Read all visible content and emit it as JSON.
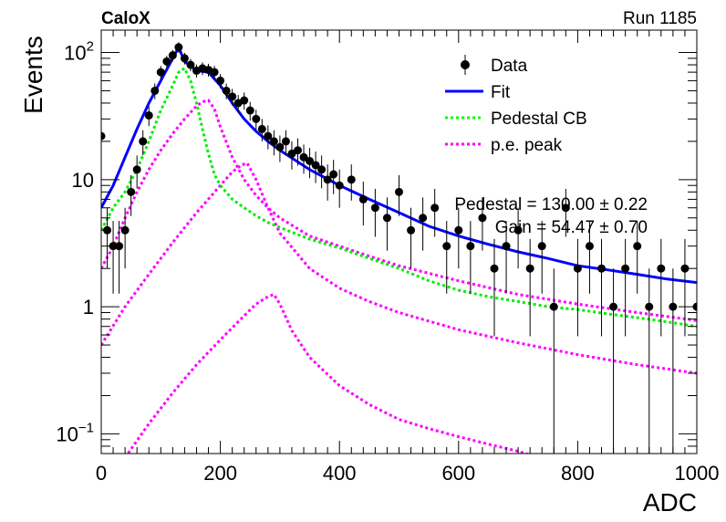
{
  "header": {
    "experiment": "CaloX",
    "run": "Run 1185"
  },
  "chart_data": {
    "type": "scatter",
    "title": "",
    "xlabel": "ADC",
    "ylabel": "Events",
    "xlim": [
      0,
      1000
    ],
    "ylim": [
      0.07,
      150
    ],
    "y_scale": "log",
    "grid": false,
    "legend_position": "top-right",
    "x_ticks": [
      "0",
      "200",
      "400",
      "600",
      "800",
      "1000"
    ],
    "y_ticks": [
      "10^-1",
      "1",
      "10",
      "10^2"
    ],
    "legend": [
      {
        "label": "Data",
        "style": "marker-errorbar",
        "color": "#000000"
      },
      {
        "label": "Fit",
        "style": "solid",
        "color": "#0000ff"
      },
      {
        "label": "Pedestal CB",
        "style": "dotted",
        "color": "#00ff00"
      },
      {
        "label": "p.e. peak",
        "style": "dotted",
        "color": "#ff00ff"
      }
    ],
    "fit_text": [
      "Pedestal = 130.00 ± 0.22",
      "Gain = 54.47 ± 0.70"
    ],
    "series": [
      {
        "name": "Data",
        "kind": "points",
        "x": [
          0,
          10,
          20,
          30,
          40,
          50,
          60,
          70,
          80,
          90,
          100,
          110,
          120,
          130,
          140,
          150,
          160,
          170,
          180,
          190,
          200,
          210,
          220,
          230,
          240,
          250,
          260,
          270,
          280,
          290,
          300,
          310,
          320,
          330,
          340,
          350,
          360,
          370,
          380,
          390,
          400,
          420,
          440,
          460,
          480,
          500,
          520,
          540,
          560,
          580,
          600,
          620,
          640,
          660,
          680,
          700,
          720,
          740,
          760,
          780,
          800,
          820,
          840,
          860,
          880,
          900,
          920,
          940,
          960,
          980,
          1000
        ],
        "y": [
          22,
          4,
          3,
          3,
          4,
          8,
          12,
          20,
          32,
          50,
          70,
          85,
          95,
          110,
          90,
          80,
          72,
          75,
          73,
          70,
          60,
          50,
          45,
          40,
          42,
          35,
          30,
          25,
          22,
          20,
          18,
          20,
          16,
          17,
          15,
          14,
          13,
          12,
          10,
          11,
          9,
          10,
          7,
          6,
          5,
          8,
          4,
          5,
          6,
          3,
          4,
          3,
          5,
          2,
          3,
          4,
          2,
          3,
          1,
          6,
          2,
          3,
          2,
          1,
          2,
          3,
          1,
          2,
          1,
          2,
          1
        ]
      },
      {
        "name": "Fit",
        "kind": "line",
        "x": [
          0,
          20,
          40,
          60,
          80,
          100,
          120,
          130,
          140,
          160,
          180,
          200,
          220,
          240,
          260,
          280,
          300,
          350,
          400,
          450,
          500,
          550,
          600,
          650,
          700,
          750,
          800,
          850,
          900,
          950,
          1000
        ],
        "y": [
          6,
          9,
          15,
          25,
          40,
          60,
          90,
          110,
          85,
          72,
          70,
          55,
          40,
          30,
          24,
          20,
          17,
          12,
          9,
          7,
          5.5,
          4.3,
          3.6,
          3.1,
          2.7,
          2.4,
          2.1,
          1.95,
          1.8,
          1.65,
          1.55
        ]
      },
      {
        "name": "Pedestal CB",
        "kind": "line",
        "x": [
          0,
          20,
          40,
          60,
          80,
          100,
          120,
          130,
          140,
          150,
          160,
          170,
          180,
          190,
          200,
          220,
          240,
          260,
          280,
          300,
          350,
          400,
          450,
          500,
          550,
          600,
          650,
          700,
          750,
          800,
          850,
          900,
          950,
          1000
        ],
        "y": [
          4,
          6,
          8,
          12,
          20,
          35,
          55,
          70,
          75,
          60,
          40,
          25,
          16,
          11,
          9,
          7,
          6,
          5.2,
          4.6,
          4.2,
          3.4,
          2.9,
          2.4,
          2.0,
          1.6,
          1.35,
          1.2,
          1.1,
          1.0,
          0.95,
          0.88,
          0.82,
          0.76,
          0.7
        ]
      },
      {
        "name": "p.e. peak (1 p.e.)",
        "kind": "line",
        "x": [
          0,
          20,
          40,
          60,
          80,
          100,
          120,
          140,
          160,
          170,
          180,
          190,
          200,
          220,
          240,
          260,
          280,
          300,
          350,
          400,
          450,
          500,
          600,
          700,
          800,
          900,
          1000
        ],
        "y": [
          2,
          3,
          5,
          8,
          12,
          17,
          23,
          30,
          38,
          41,
          42,
          36,
          26,
          15,
          10,
          7.5,
          6,
          5,
          3.6,
          3,
          2.5,
          2.1,
          1.6,
          1.25,
          1.05,
          0.9,
          0.78
        ]
      },
      {
        "name": "p.e. peak (2 p.e.)",
        "kind": "line",
        "x": [
          0,
          40,
          80,
          120,
          160,
          200,
          220,
          235,
          245,
          260,
          280,
          300,
          350,
          400,
          450,
          500,
          600,
          700,
          800,
          900,
          1000
        ],
        "y": [
          0.5,
          1,
          1.8,
          3.2,
          5.5,
          9,
          11.5,
          13,
          13.5,
          10,
          6,
          3.8,
          2,
          1.4,
          1.1,
          0.9,
          0.66,
          0.52,
          0.42,
          0.35,
          0.3
        ]
      },
      {
        "name": "p.e. peak (3 p.e.)",
        "kind": "line",
        "x": [
          40,
          80,
          120,
          160,
          200,
          240,
          260,
          280,
          290,
          300,
          320,
          350,
          400,
          450,
          500,
          550,
          600,
          650,
          700,
          735
        ],
        "y": [
          0.065,
          0.12,
          0.21,
          0.35,
          0.55,
          0.85,
          1.05,
          1.2,
          1.25,
          1.05,
          0.65,
          0.4,
          0.24,
          0.17,
          0.13,
          0.11,
          0.095,
          0.083,
          0.073,
          0.065
        ]
      }
    ]
  }
}
